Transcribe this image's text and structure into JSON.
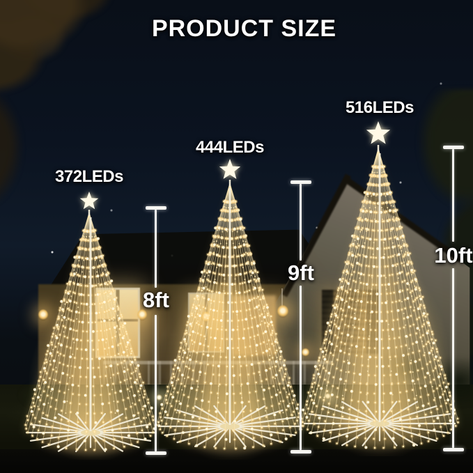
{
  "title": "PRODUCT SIZE",
  "trees": [
    {
      "id": "8ft-tree",
      "leds_label": "372LEDs",
      "height_label": "8ft"
    },
    {
      "id": "9ft-tree",
      "leds_label": "444LEDs",
      "height_label": "9ft"
    },
    {
      "id": "10ft-tree",
      "leds_label": "516LEDs",
      "height_label": "10ft"
    }
  ],
  "colors": {
    "label_text": "#ffffff",
    "measure_line": "#f7f6f1",
    "led_core": "#ffeab4",
    "led_bright": "#fff8dc",
    "led_glow": "#ffd07c",
    "structure_white": "#f4eeda",
    "star_white": "#fff9e6",
    "window_glow": "#e8cf96",
    "sky_top": "#090f18",
    "sky_bottom": "#101b29"
  }
}
